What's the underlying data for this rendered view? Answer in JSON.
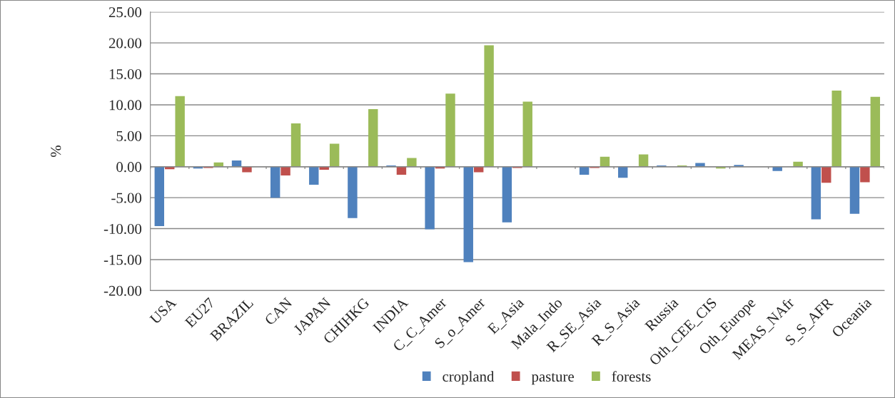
{
  "chart_data": {
    "type": "bar",
    "ylabel": "%",
    "categories": [
      "USA",
      "EU27",
      "BRAZIL",
      "CAN",
      "JAPAN",
      "CHIHKG",
      "INDIA",
      "C_C_Amer",
      "S_o_Amer",
      "E_Asia",
      "Mala_Indo",
      "R_SE_Asia",
      "R_S_Asia",
      "Russia",
      "Oth_CEE_CIS",
      "Oth_Europe",
      "MEAS_NAfr",
      "S_S_AFR",
      "Oceania"
    ],
    "series": [
      {
        "name": "cropland",
        "color": "#4f81bd",
        "values": [
          -9.6,
          -0.3,
          1.0,
          -5.0,
          -2.9,
          -8.3,
          0.2,
          -10.1,
          -15.4,
          -9.0,
          null,
          -1.3,
          -1.8,
          0.2,
          0.6,
          0.3,
          -0.7,
          -8.5,
          -7.6
        ]
      },
      {
        "name": "pasture",
        "color": "#c0504d",
        "values": [
          -0.4,
          -0.2,
          -0.9,
          -1.4,
          -0.5,
          null,
          -1.3,
          -0.3,
          -0.9,
          -0.2,
          null,
          -0.2,
          null,
          null,
          null,
          null,
          null,
          -2.6,
          -2.5
        ]
      },
      {
        "name": "forests",
        "color": "#9bbb59",
        "values": [
          11.4,
          0.7,
          null,
          7.0,
          3.7,
          9.3,
          1.4,
          11.8,
          19.6,
          10.5,
          null,
          1.6,
          2.0,
          0.2,
          -0.3,
          null,
          0.8,
          12.3,
          11.3
        ]
      }
    ],
    "ylim": [
      -20,
      25
    ],
    "yticks": [
      {
        "value": -20,
        "label": "-20.00"
      },
      {
        "value": -15,
        "label": "-15.00"
      },
      {
        "value": -10,
        "label": "-10.00"
      },
      {
        "value": -5,
        "label": "-5.00"
      },
      {
        "value": 0,
        "label": "0.00"
      },
      {
        "value": 5,
        "label": "5.00"
      },
      {
        "value": 10,
        "label": "10.00"
      },
      {
        "value": 15,
        "label": "15.00"
      },
      {
        "value": 20,
        "label": "20.00"
      },
      {
        "value": 25,
        "label": "25.00"
      }
    ],
    "grid": "y",
    "legend": "bottom"
  }
}
